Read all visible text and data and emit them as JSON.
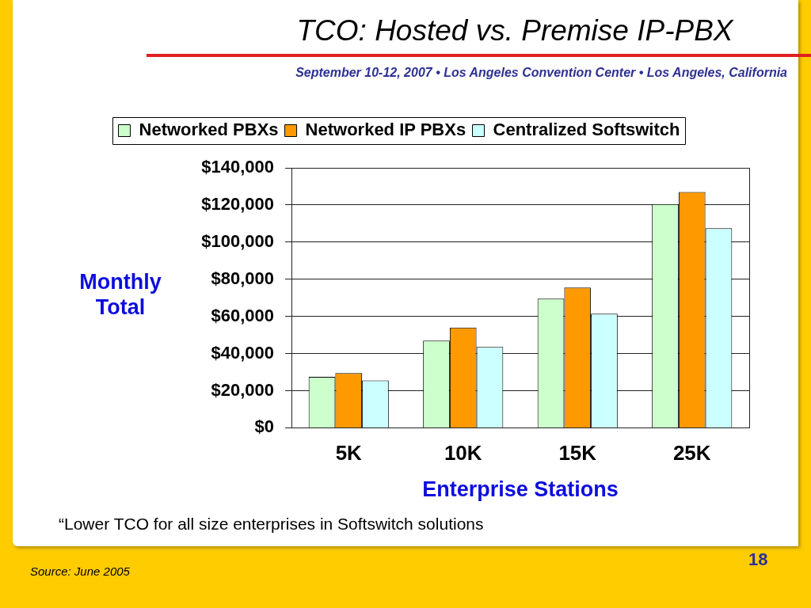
{
  "chart_data": {
    "type": "bar",
    "title": "TCO: Hosted vs. Premise IP-PBX",
    "subtitle": "September 10-12, 2007 • Los Angeles Convention Center • Los Angeles, California",
    "xlabel": "Enterprise Stations",
    "ylabel": "Monthly Total",
    "annotations": [
      "“Lower TCO for all size enterprises in Softswitch solutions",
      "Source: June 2005",
      "18"
    ],
    "categories": [
      "5K",
      "10K",
      "15K",
      "25K"
    ],
    "series": [
      {
        "name": "Networked PBXs",
        "color": "#ccffcc",
        "values": [
          27500,
          47000,
          69500,
          120500
        ]
      },
      {
        "name": "Networked IP PBXs",
        "color": "#ff9900",
        "values": [
          29500,
          54000,
          75500,
          127000
        ]
      },
      {
        "name": "Centralized Softswitch",
        "color": "#ccffff",
        "values": [
          25500,
          43500,
          61500,
          107500
        ]
      }
    ],
    "ylim": [
      0,
      140000
    ],
    "yticks": [
      {
        "value": 0,
        "label": "$0"
      },
      {
        "value": 20000,
        "label": "$20,000"
      },
      {
        "value": 40000,
        "label": "$40,000"
      },
      {
        "value": 60000,
        "label": "$60,000"
      },
      {
        "value": 80000,
        "label": "$80,000"
      },
      {
        "value": 100000,
        "label": "$100,000"
      },
      {
        "value": 120000,
        "label": "$120,000"
      },
      {
        "value": 140000,
        "label": "$140,000"
      }
    ],
    "grid": "y",
    "legend": "top"
  }
}
